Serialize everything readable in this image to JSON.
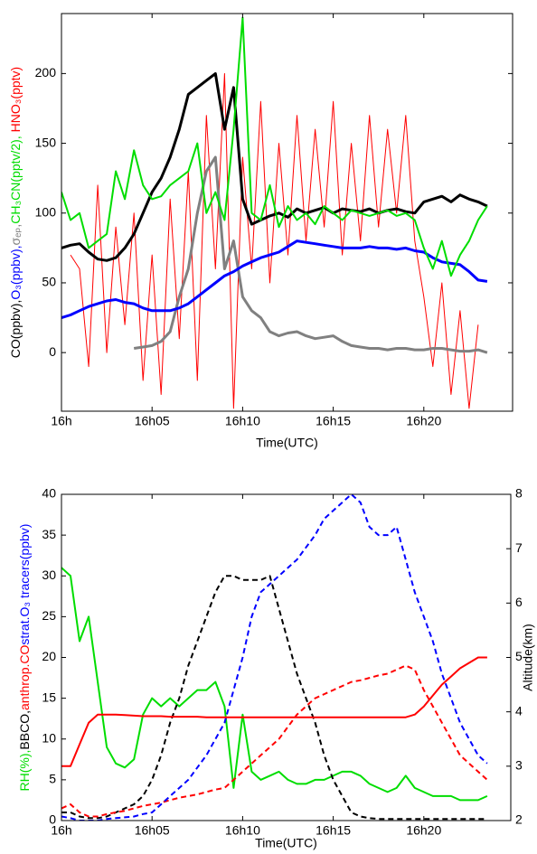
{
  "chart_data": [
    {
      "type": "line",
      "xlabel": "Time(UTC)",
      "x": [
        0,
        0.5,
        1,
        1.5,
        2,
        2.5,
        3,
        3.5,
        4,
        4.5,
        5,
        5.5,
        6,
        6.5,
        7,
        7.5,
        8,
        8.5,
        9,
        9.5,
        10,
        10.5,
        11,
        11.5,
        12,
        12.5,
        13,
        13.5,
        14,
        14.5,
        15,
        15.5,
        16,
        16.5,
        17,
        17.5,
        18,
        18.5,
        19,
        19.5,
        20,
        20.5,
        21,
        21.5,
        22,
        22.5,
        23,
        23.5
      ],
      "xlim": [
        0,
        24.9
      ],
      "xticks": [
        {
          "value": 0,
          "label": "16h"
        },
        {
          "value": 5,
          "label": "16h05"
        },
        {
          "value": 10,
          "label": "16h10"
        },
        {
          "value": 15,
          "label": "16h15"
        },
        {
          "value": 20,
          "label": "16h20"
        }
      ],
      "ylim": [
        -42,
        243
      ],
      "yticks": [
        0,
        50,
        100,
        150,
        200
      ],
      "series": [
        {
          "name": "CO(ppbv),",
          "color": "#000000",
          "linewidth": 3,
          "values": [
            75,
            77,
            78,
            72,
            67,
            66,
            68,
            75,
            85,
            100,
            115,
            125,
            140,
            160,
            185,
            190,
            195,
            200,
            160,
            190,
            110,
            92,
            95,
            98,
            100,
            97,
            103,
            100,
            102,
            104,
            100,
            103,
            102,
            101,
            103,
            100,
            102,
            103,
            101,
            100,
            108,
            110,
            112,
            108,
            113,
            110,
            108,
            105
          ]
        },
        {
          "name": "O₃(ppbv),",
          "color": "#0000ff",
          "linewidth": 3,
          "values": [
            25,
            27,
            30,
            33,
            35,
            37,
            38,
            36,
            35,
            32,
            30,
            30,
            30,
            32,
            35,
            40,
            45,
            50,
            55,
            58,
            62,
            65,
            68,
            70,
            72,
            76,
            80,
            79,
            78,
            77,
            76,
            75,
            75,
            75,
            76,
            75,
            75,
            74,
            75,
            73,
            72,
            68,
            65,
            64,
            63,
            58,
            52,
            51
          ]
        },
        {
          "name": "σₑₚ,",
          "color": "#808080",
          "linewidth": 3,
          "values": [
            null,
            null,
            null,
            null,
            null,
            null,
            null,
            null,
            3,
            4,
            5,
            8,
            15,
            40,
            60,
            100,
            130,
            140,
            60,
            80,
            40,
            30,
            25,
            15,
            12,
            14,
            15,
            12,
            10,
            11,
            12,
            8,
            5,
            4,
            3,
            3,
            2,
            3,
            3,
            2,
            2,
            3,
            3,
            2,
            1,
            1,
            2,
            0
          ]
        },
        {
          "name": "CH₃CN(pptv/2),",
          "color": "#00dd00",
          "linewidth": 2,
          "values": [
            115,
            95,
            100,
            75,
            80,
            85,
            130,
            110,
            145,
            120,
            110,
            112,
            120,
            125,
            130,
            150,
            100,
            115,
            95,
            160,
            240,
            100,
            95,
            120,
            90,
            105,
            95,
            100,
            92,
            105,
            100,
            95,
            102,
            100,
            98,
            100,
            102,
            98,
            100,
            95,
            75,
            60,
            80,
            55,
            70,
            80,
            95,
            105
          ]
        },
        {
          "name": " HNO₃(pptv)",
          "color": "#ff0000",
          "linewidth": 1,
          "values": [
            null,
            70,
            60,
            -10,
            120,
            0,
            90,
            20,
            100,
            -20,
            70,
            -30,
            110,
            10,
            130,
            -20,
            170,
            60,
            200,
            -40,
            140,
            60,
            180,
            50,
            150,
            70,
            170,
            80,
            160,
            90,
            180,
            70,
            150,
            80,
            170,
            90,
            160,
            100,
            170,
            80,
            40,
            -10,
            50,
            -30,
            30,
            -40,
            20,
            null
          ]
        }
      ]
    },
    {
      "type": "line",
      "xlabel": "Time(UTC)",
      "x": [
        0,
        0.5,
        1,
        1.5,
        2,
        2.5,
        3,
        3.5,
        4,
        4.5,
        5,
        5.5,
        6,
        6.5,
        7,
        7.5,
        8,
        8.5,
        9,
        9.5,
        10,
        10.5,
        11,
        11.5,
        12,
        12.5,
        13,
        13.5,
        14,
        14.5,
        15,
        15.5,
        16,
        16.5,
        17,
        17.5,
        18,
        18.5,
        19,
        19.5,
        20,
        20.5,
        21,
        21.5,
        22,
        22.5,
        23,
        23.5
      ],
      "xlim": [
        0,
        24.8
      ],
      "xticks": [
        {
          "value": 0,
          "label": "16h"
        },
        {
          "value": 5,
          "label": "16h05"
        },
        {
          "value": 10,
          "label": "16h10"
        },
        {
          "value": 15,
          "label": "16h15"
        },
        {
          "value": 20,
          "label": "16h20"
        }
      ],
      "ylim": [
        0,
        40
      ],
      "yticks": [
        0,
        5,
        10,
        15,
        20,
        25,
        30,
        35,
        40
      ],
      "y2lim": [
        2,
        8
      ],
      "y2ticks": [
        2,
        3,
        4,
        5,
        6,
        7,
        8
      ],
      "series": [
        {
          "name": "RH(%),",
          "color": "#00dd00",
          "dash": false,
          "values": [
            31,
            30,
            22,
            25,
            17,
            9,
            7,
            6.5,
            7.5,
            13,
            15,
            14,
            15,
            14,
            15,
            16,
            16,
            17,
            14,
            4,
            13,
            6,
            5,
            5.5,
            6,
            5,
            4.5,
            4.5,
            5,
            5,
            5.5,
            6,
            6,
            5.5,
            4.5,
            4,
            3.5,
            4,
            5.5,
            4,
            3.5,
            3,
            3,
            3,
            2.5,
            2.5,
            2.5,
            3
          ]
        },
        {
          "name": "BBCO,",
          "color": "#000000",
          "dash": true,
          "values": [
            1,
            1,
            0.5,
            0.3,
            0.3,
            0.5,
            1,
            1.5,
            2,
            3,
            5,
            8,
            12,
            15,
            19,
            22,
            25,
            28,
            30,
            30,
            29.5,
            29.5,
            29.5,
            30,
            26,
            22,
            18,
            15,
            12,
            8,
            5,
            3,
            1,
            0.5,
            0.3,
            0.2,
            0.2,
            0.2,
            0.2,
            0.2,
            0.2,
            0.2,
            0.2,
            0.2,
            0.2,
            0.2,
            0.2,
            0.2
          ]
        },
        {
          "name": "anthrop.CO",
          "color": "#ff0000",
          "dash": true,
          "values": [
            1.5,
            2,
            1,
            0.5,
            0.5,
            0.8,
            1,
            1.2,
            1.5,
            1.8,
            2,
            2.2,
            2.5,
            2.8,
            3,
            3.2,
            3.5,
            3.8,
            4,
            5,
            6,
            7,
            8,
            9,
            10,
            11.5,
            13,
            14,
            15,
            15.5,
            16,
            16.5,
            17,
            17.2,
            17.5,
            17.8,
            18,
            18.5,
            19,
            18.5,
            16,
            14,
            12,
            10,
            8,
            7,
            6,
            5
          ]
        },
        {
          "name": "strat.O₃ tracers(ppbv)",
          "color": "#0000ff",
          "dash": true,
          "values": [
            0.5,
            0.3,
            0,
            0,
            0,
            0.2,
            0.3,
            0.4,
            0.5,
            0.8,
            1,
            2,
            3,
            4,
            5,
            6.5,
            8,
            10,
            12,
            16,
            20,
            25,
            28,
            29,
            30,
            31,
            32,
            33.5,
            35,
            37,
            38,
            39,
            40,
            39,
            36,
            35,
            35,
            36,
            32,
            28,
            25,
            22,
            18,
            15,
            12,
            10,
            8,
            7
          ]
        },
        {
          "name": "Altitude(km)",
          "color": "#ff0000",
          "dash": false,
          "axis": "y2",
          "values": [
            3,
            3,
            3.4,
            3.8,
            3.95,
            3.95,
            3.95,
            3.94,
            3.93,
            3.92,
            3.92,
            3.92,
            3.91,
            3.91,
            3.91,
            3.91,
            3.9,
            3.9,
            3.9,
            3.9,
            3.9,
            3.9,
            3.9,
            3.9,
            3.9,
            3.9,
            3.9,
            3.9,
            3.9,
            3.9,
            3.9,
            3.9,
            3.9,
            3.9,
            3.9,
            3.9,
            3.9,
            3.9,
            3.9,
            3.95,
            4.1,
            4.3,
            4.5,
            4.65,
            4.8,
            4.9,
            5,
            5
          ]
        }
      ]
    }
  ]
}
